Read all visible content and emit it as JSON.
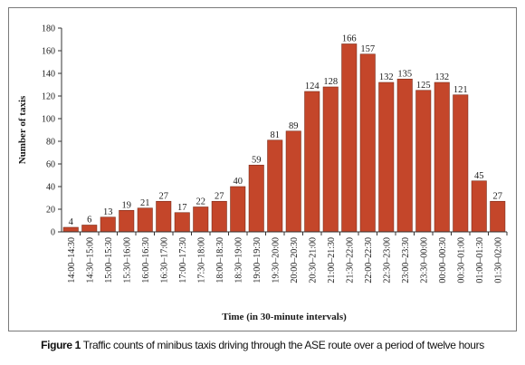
{
  "chart_data": {
    "type": "bar",
    "categories": [
      "14:00–14:30",
      "14:30–15:00",
      "15:00–15:30",
      "15:30–16:00",
      "16:00–16:30",
      "16:30–17:00",
      "17:00–17:30",
      "17:30–18:00",
      "18:00–18:30",
      "18:30–19:00",
      "19:00–19:30",
      "19:30–20:00",
      "20:00–20:30",
      "20:30–21:00",
      "21:00–21:30",
      "21:30–22:00",
      "22:00–22:30",
      "22:30–23:00",
      "23:00–23:30",
      "23:30–00:00",
      "00:00–00:30",
      "00:30–01:00",
      "01:00–01:30",
      "01:30–02:00"
    ],
    "values": [
      4,
      6,
      13,
      19,
      21,
      27,
      17,
      22,
      27,
      40,
      59,
      81,
      89,
      124,
      128,
      166,
      157,
      132,
      135,
      125,
      132,
      121,
      45,
      27
    ],
    "xlabel": "Time (in 30-minute intervals)",
    "ylabel": "Number of taxis",
    "ylim": [
      0,
      180
    ],
    "yticks": [
      0,
      20,
      40,
      60,
      80,
      100,
      120,
      140,
      160,
      180
    ],
    "grid": false,
    "bar_color": "#c4462a",
    "bar_edge_color": "#7a2a18"
  },
  "caption": {
    "figure_label": "Figure 1",
    "text": "Traffic counts of minibus taxis driving through the ASE route over a period of twelve hours"
  }
}
